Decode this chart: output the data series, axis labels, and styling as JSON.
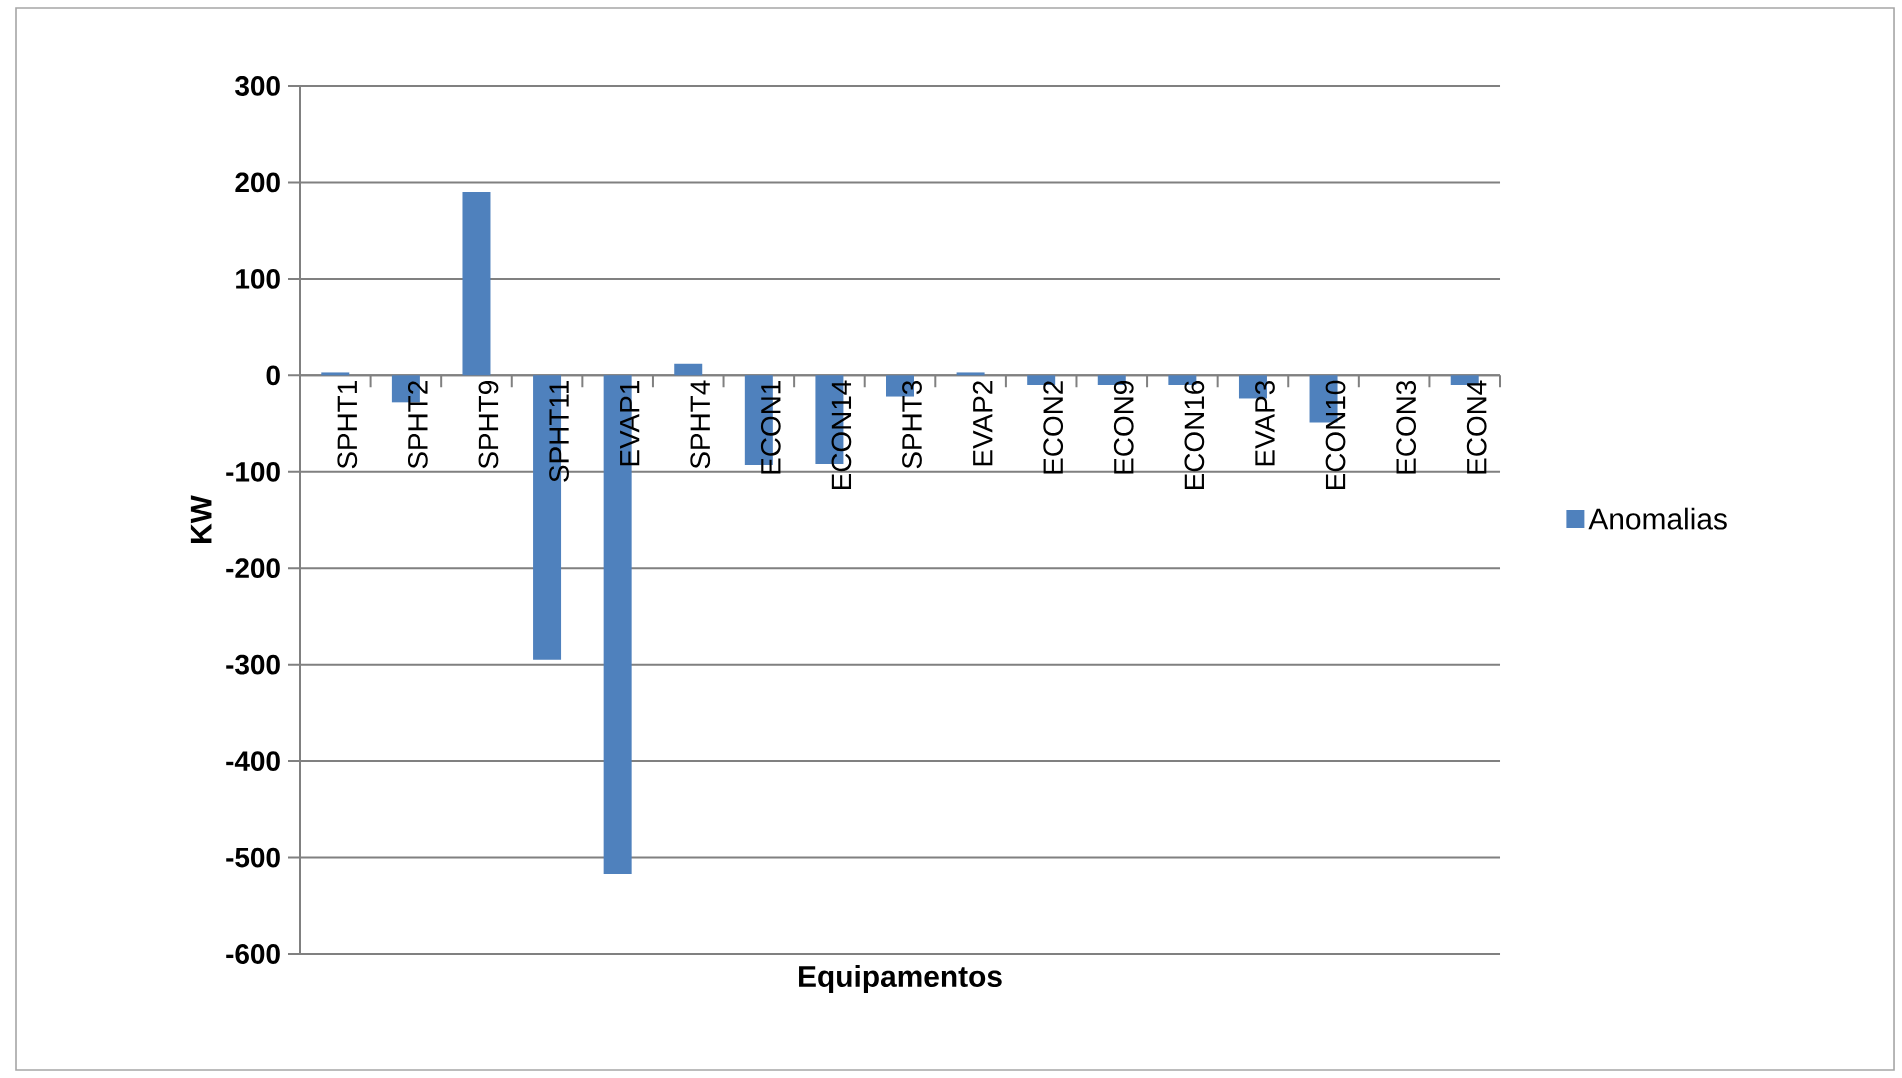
{
  "chart_data": {
    "type": "bar",
    "xlabel": "Equipamentos",
    "ylabel": "KW",
    "categories": [
      "SPHT1",
      "SPHT2",
      "SPHT9",
      "SPHT11",
      "EVAP1",
      "SPHT4",
      "ECON1",
      "ECON14",
      "SPHT3",
      "EVAP2",
      "ECON2",
      "ECON9",
      "ECON16",
      "EVAP3",
      "ECON10",
      "ECON3",
      "ECON4"
    ],
    "series": [
      {
        "name": "Anomalias",
        "color": "#4f81bd",
        "values": [
          3,
          -28,
          190,
          -295,
          -517,
          12,
          -93,
          -92,
          -22,
          3,
          -10,
          -10,
          -10,
          -24,
          -49,
          0,
          -10
        ]
      }
    ],
    "ylim": [
      -600,
      300
    ],
    "yticks": [
      -600,
      -500,
      -400,
      -300,
      -200,
      -100,
      0,
      100,
      200,
      300
    ],
    "grid": "y",
    "legend": "right"
  }
}
